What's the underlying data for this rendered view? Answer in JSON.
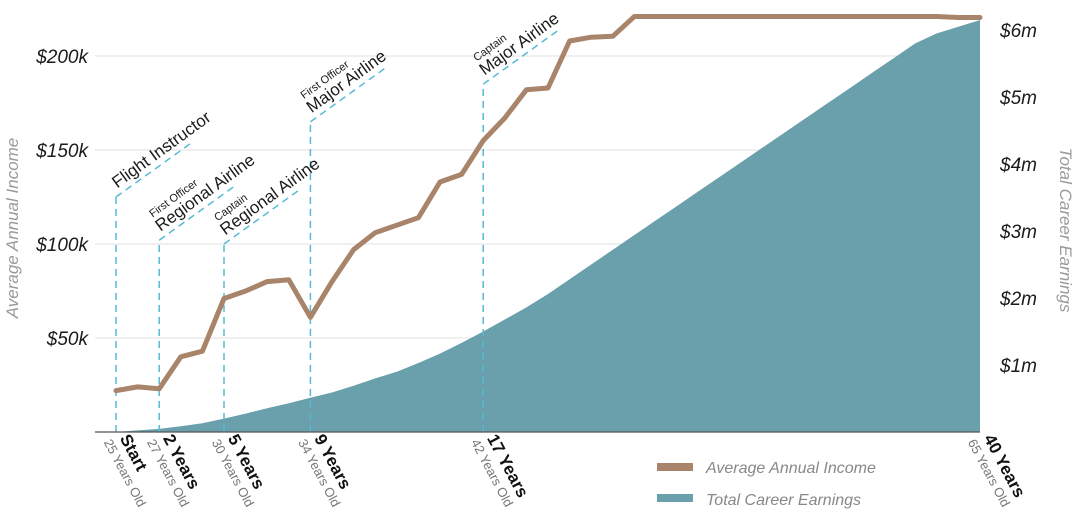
{
  "chart_data": {
    "type": "line+area",
    "left_axis": {
      "title": "Average Annual Income",
      "ticks": [
        {
          "value": 50000,
          "label": "$50k"
        },
        {
          "value": 100000,
          "label": "$100k"
        },
        {
          "value": 150000,
          "label": "$150k"
        },
        {
          "value": 200000,
          "label": "$200k"
        }
      ],
      "ylim": [
        0,
        220000
      ]
    },
    "right_axis": {
      "title": "Total Career Earnings",
      "ticks": [
        {
          "value": 1000000,
          "label": "$1m"
        },
        {
          "value": 2000000,
          "label": "$2m"
        },
        {
          "value": 3000000,
          "label": "$3m"
        },
        {
          "value": 4000000,
          "label": "$4m"
        },
        {
          "value": 5000000,
          "label": "$5m"
        },
        {
          "value": 6000000,
          "label": "$6m"
        }
      ],
      "ylim": [
        0,
        6150000
      ]
    },
    "xlim": [
      0,
      40
    ],
    "grid": true,
    "x_ticks": [
      {
        "year": 0,
        "label": "Start",
        "sub": "25 Years Old"
      },
      {
        "year": 2,
        "label": "2 Years",
        "sub": "27 Years Old"
      },
      {
        "year": 5,
        "label": "5 Years",
        "sub": "30 Years Old"
      },
      {
        "year": 9,
        "label": "9 Years",
        "sub": "34 Years Old"
      },
      {
        "year": 17,
        "label": "17 Years",
        "sub": "42 Years Old"
      },
      {
        "year": 40,
        "label": "40 Years",
        "sub": "65 Years Old"
      }
    ],
    "milestones": [
      {
        "year": 0,
        "small": "",
        "main": "Flight Instructor",
        "value": 125000
      },
      {
        "year": 2,
        "small": "First Officer",
        "main": "Regional Airline",
        "value": 102000
      },
      {
        "year": 5,
        "small": "Captain",
        "main": "Regional Airline",
        "value": 100000
      },
      {
        "year": 9,
        "small": "First Officer",
        "main": "Major Airline",
        "value": 165000
      },
      {
        "year": 17,
        "small": "Captain",
        "main": "Major Airline",
        "value": 185000
      }
    ],
    "series": [
      {
        "name": "Average Annual Income",
        "type": "line",
        "color": "#a8846b",
        "axis": "left",
        "x": [
          0,
          1,
          2,
          3,
          4,
          5,
          6,
          7,
          8,
          9,
          10,
          11,
          12,
          13,
          14,
          15,
          16,
          17,
          18,
          19,
          20,
          21,
          22,
          23,
          24,
          25,
          26,
          27,
          28,
          29,
          30,
          31,
          32,
          33,
          34,
          35,
          36,
          37,
          38,
          39,
          40
        ],
        "y": [
          22000,
          24000,
          23000,
          40000,
          43000,
          71000,
          75000,
          80000,
          81000,
          61000,
          80000,
          97000,
          106000,
          110000,
          114000,
          133000,
          137000,
          155000,
          167000,
          182000,
          183000,
          208000,
          210000,
          210500,
          221000,
          221000,
          221000,
          221000,
          221000,
          221000,
          221000,
          221000,
          221000,
          221000,
          221000,
          221000,
          221000,
          221000,
          221000,
          220500,
          220500
        ]
      },
      {
        "name": "Total Career Earnings",
        "type": "area",
        "color": "#6a9fac",
        "axis": "right",
        "x": [
          0,
          1,
          2,
          3,
          4,
          5,
          6,
          7,
          8,
          9,
          10,
          11,
          12,
          13,
          14,
          15,
          16,
          17,
          18,
          19,
          20,
          21,
          22,
          23,
          24,
          25,
          26,
          27,
          28,
          29,
          30,
          31,
          32,
          33,
          34,
          35,
          36,
          37,
          38,
          39,
          40
        ],
        "y": [
          0,
          24000,
          47000,
          85000,
          130000,
          200000,
          275000,
          355000,
          430000,
          510000,
          590000,
          690000,
          800000,
          900000,
          1030000,
          1170000,
          1330000,
          1500000,
          1680000,
          1860000,
          2060000,
          2280000,
          2500000,
          2720000,
          2940000,
          3160000,
          3380000,
          3600000,
          3820000,
          4040000,
          4260000,
          4480000,
          4700000,
          4920000,
          5140000,
          5360000,
          5580000,
          5800000,
          5950000,
          6050000,
          6150000
        ]
      }
    ]
  }
}
